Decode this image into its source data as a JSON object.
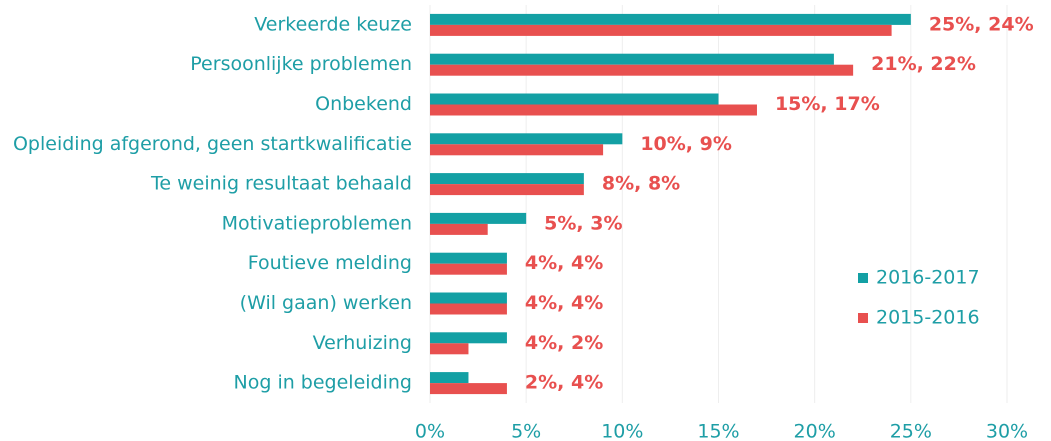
{
  "chart_data": {
    "type": "barh",
    "categories": [
      "Verkeerde keuze",
      "Persoonlijke problemen",
      "Onbekend",
      "Opleiding afgerond, geen startkwalificatie",
      "Te weinig resultaat behaald",
      "Motivatieproblemen",
      "Foutieve melding",
      "(Wil gaan) werken",
      "Verhuizing",
      "Nog in begeleiding"
    ],
    "series": [
      {
        "name": "2016-2017",
        "color": "#13a0a4",
        "values": [
          25,
          21,
          15,
          10,
          8,
          5,
          4,
          4,
          4,
          2
        ]
      },
      {
        "name": "2015-2016",
        "color": "#e8504f",
        "values": [
          24,
          22,
          17,
          9,
          8,
          3,
          4,
          4,
          2,
          4
        ]
      }
    ],
    "value_labels": [
      "25%, 24%",
      "21%, 22%",
      "15%, 17%",
      "10%, 9%",
      "8%, 8%",
      "5%, 3%",
      "4%, 4%",
      "4%, 4%",
      "4%, 2%",
      "2%, 4%"
    ],
    "xlim": [
      0,
      30
    ],
    "xticks": [
      {
        "value": 0,
        "label": "0%"
      },
      {
        "value": 5,
        "label": "5%"
      },
      {
        "value": 10,
        "label": "10%"
      },
      {
        "value": 15,
        "label": "15%"
      },
      {
        "value": 20,
        "label": "20%"
      },
      {
        "value": 25,
        "label": "25%"
      },
      {
        "value": 30,
        "label": "30%"
      }
    ],
    "grid": true,
    "legend": "right"
  }
}
